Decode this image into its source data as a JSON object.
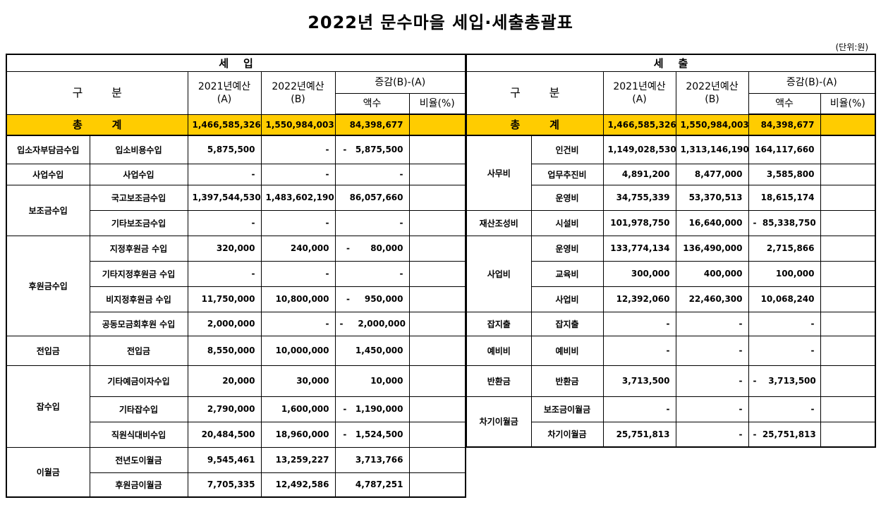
{
  "title": "2022년 문수마을 세입·세출총괄표",
  "unit": "(단위:원)",
  "revenue": {
    "section": "세    입",
    "header": {
      "category": "구        분",
      "budget2021": "2021년예산\n(A)",
      "budget2022": "2022년예산\n(B)",
      "change": "증감(B)-(A)",
      "amount": "액수",
      "ratio": "비율(%)"
    },
    "total": {
      "label": "총        계",
      "a": "1,466,585,326",
      "b": "1,550,984,003",
      "diff": "84,398,677",
      "ratio": ""
    },
    "groups": [
      {
        "name": "입소자부담금수입",
        "rows": [
          {
            "item": "입소비용수입",
            "a": "5,875,500",
            "b": "-",
            "diff": "-   5,875,500"
          }
        ]
      },
      {
        "name": "사업수입",
        "rows": [
          {
            "item": "사업수입",
            "a": "-",
            "b": "-",
            "diff": "-"
          }
        ]
      },
      {
        "name": "보조금수입",
        "rows": [
          {
            "item": "국고보조금수입",
            "a": "1,397,544,530",
            "b": "1,483,602,190",
            "diff": "86,057,660"
          },
          {
            "item": "기타보조금수입",
            "a": "-",
            "b": "-",
            "diff": "-"
          }
        ]
      },
      {
        "name": "후원금수입",
        "rows": [
          {
            "item": "지정후원금 수입",
            "a": "320,000",
            "b": "240,000",
            "diff": "-       80,000"
          },
          {
            "item": "기타지정후원금 수입",
            "a": "-",
            "b": "-",
            "diff": "-"
          },
          {
            "item": "비지정후원금 수입",
            "a": "11,750,000",
            "b": "10,800,000",
            "diff": "-     950,000"
          },
          {
            "item": "공동모금회후원 수입",
            "a": "2,000,000",
            "b": "-",
            "diff": "-     2,000,000"
          }
        ]
      },
      {
        "name": "전입금",
        "rows": [
          {
            "item": "전입금",
            "a": "8,550,000",
            "b": "10,000,000",
            "diff": "1,450,000"
          }
        ]
      },
      {
        "name": "잡수입",
        "rows": [
          {
            "item": "기타예금이자수입",
            "a": "20,000",
            "b": "30,000",
            "diff": "10,000"
          },
          {
            "item": "기타잡수입",
            "a": "2,790,000",
            "b": "1,600,000",
            "diff": "-   1,190,000"
          },
          {
            "item": "직원식대비수입",
            "a": "20,484,500",
            "b": "18,960,000",
            "diff": "-   1,524,500"
          }
        ]
      },
      {
        "name": "이월금",
        "rows": [
          {
            "item": "전년도이월금",
            "a": "9,545,461",
            "b": "13,259,227",
            "diff": "3,713,766"
          },
          {
            "item": "후원금이월금",
            "a": "7,705,335",
            "b": "12,492,586",
            "diff": "4,787,251"
          }
        ]
      }
    ]
  },
  "expenditure": {
    "section": "세    출",
    "header": {
      "category": "구        분",
      "budget2021": "2021년예산\n(A)",
      "budget2022": "2022년예산\n(B)",
      "change": "증감(B)-(A)",
      "amount": "액수",
      "ratio": "비율(%)"
    },
    "total": {
      "label": "총        계",
      "a": "1,466,585,326",
      "b": "1,550,984,003",
      "diff": "84,398,677",
      "ratio": ""
    },
    "groups": [
      {
        "name": "사무비",
        "rows": [
          {
            "item": "인건비",
            "a": "1,149,028,530",
            "b": "1,313,146,190",
            "diff": "164,117,660"
          },
          {
            "item": "업무추진비",
            "a": "4,891,200",
            "b": "8,477,000",
            "diff": "3,585,800"
          },
          {
            "item": "운영비",
            "a": "34,755,339",
            "b": "53,370,513",
            "diff": "18,615,174"
          }
        ]
      },
      {
        "name": "재산조성비",
        "rows": [
          {
            "item": "시설비",
            "a": "101,978,750",
            "b": "16,640,000",
            "diff": "-  85,338,750"
          }
        ]
      },
      {
        "name": "사업비",
        "rows": [
          {
            "item": "운영비",
            "a": "133,774,134",
            "b": "136,490,000",
            "diff": "2,715,866"
          },
          {
            "item": "교육비",
            "a": "300,000",
            "b": "400,000",
            "diff": "100,000"
          },
          {
            "item": "사업비",
            "a": "12,392,060",
            "b": "22,460,300",
            "diff": "10,068,240"
          }
        ]
      },
      {
        "name": "잡지출",
        "rows": [
          {
            "item": "잡지출",
            "a": "-",
            "b": "-",
            "diff": "-"
          }
        ]
      },
      {
        "name": "예비비",
        "rows": [
          {
            "item": "예비비",
            "a": "-",
            "b": "-",
            "diff": "-"
          }
        ]
      },
      {
        "name": "반환금",
        "rows": [
          {
            "item": "반환금",
            "a": "3,713,500",
            "b": "-",
            "diff": "-    3,713,500"
          }
        ]
      },
      {
        "name": "차기이월금",
        "rows": [
          {
            "item": "보조금이월금",
            "a": "-",
            "b": "-",
            "diff": "-"
          },
          {
            "item": "차기이월금",
            "a": "25,751,813",
            "b": "-",
            "diff": "-  25,751,813"
          }
        ]
      }
    ]
  }
}
